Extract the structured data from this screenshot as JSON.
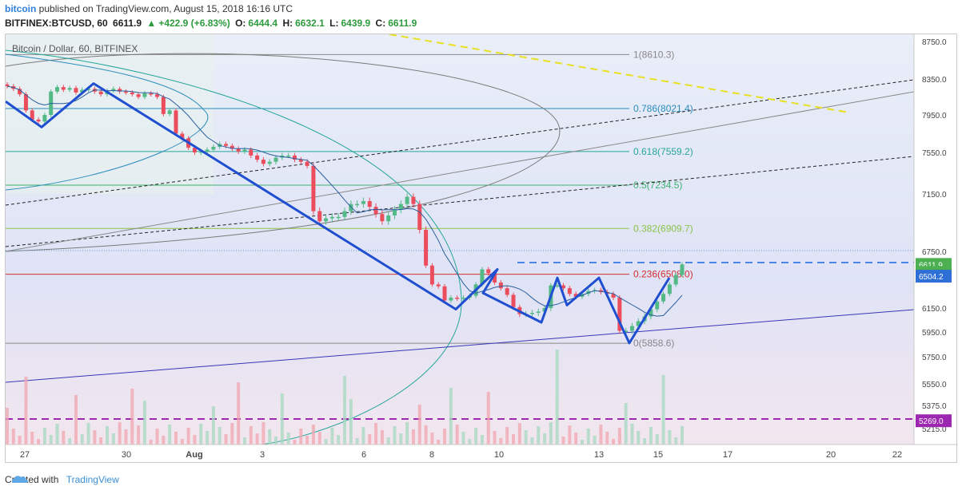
{
  "header": {
    "brand": "bitcoin",
    "published": "published on TradingView.com, August 15, 2018 16:16 UTC",
    "symbol": "BITFINEX:BTCUSD, 60",
    "last": "6611.9",
    "change": "+422.9 (+6.83%)",
    "o_label": "O:",
    "o_value": "6444.4",
    "h_label": "H:",
    "h_value": "6632.1",
    "l_label": "L:",
    "l_value": "6439.9",
    "c_label": "C:",
    "c_value": "6611.9"
  },
  "footer": {
    "created_with": "Created with",
    "brand": "TradingView"
  },
  "chart_data": {
    "type": "candlestick",
    "title": "Bitcoin / Dollar, 60, BITFINEX",
    "y_ticks": [
      "8750.0",
      "8350.0",
      "7950.0",
      "7550.0",
      "7150.0",
      "6750.0",
      "6150.0",
      "5950.0",
      "5750.0",
      "5550.0",
      "5375.0",
      "5215.0"
    ],
    "x_ticks": [
      "27",
      "30",
      "Aug",
      "3",
      "6",
      "8",
      "10",
      "13",
      "15",
      "17",
      "20",
      "22"
    ],
    "ylim": [
      5215,
      8750
    ],
    "fib_levels": [
      {
        "label": "1(8610.3)",
        "value": 8610.3,
        "color": "#888888"
      },
      {
        "label": "0.786(8021.4)",
        "value": 8021.4,
        "color": "#2b8cbe"
      },
      {
        "label": "0.618(7559.2)",
        "value": 7559.2,
        "color": "#26a69a"
      },
      {
        "label": "0.5(7234.5)",
        "value": 7234.5,
        "color": "#3cb371"
      },
      {
        "label": "0.382(6909.7)",
        "value": 6909.7,
        "color": "#8bc34a"
      },
      {
        "label": "0.236(6508.0)",
        "value": 6508.0,
        "color": "#d32f2f"
      },
      {
        "label": "0(5858.6)",
        "value": 5858.6,
        "color": "#888888"
      }
    ],
    "price_labels": [
      {
        "text": "6611.9",
        "value": 6611.9,
        "color": "#4caf50"
      },
      {
        "text": "43:56",
        "value": 6560,
        "color": "#4caf50"
      },
      {
        "text": "6504.2",
        "value": 6504.2,
        "color": "#2f6fd8"
      },
      {
        "text": "5269.0",
        "value": 5269.0,
        "color": "#9c27b0"
      }
    ],
    "candles": [
      8270,
      8240,
      8180,
      8000,
      7900,
      7880,
      7950,
      8210,
      8260,
      8230,
      8250,
      8200,
      8230,
      8240,
      8210,
      8180,
      8220,
      8240,
      8210,
      8200,
      8180,
      8150,
      8190,
      8180,
      8150,
      7960,
      8000,
      7750,
      7700,
      7600,
      7550,
      7560,
      7580,
      7610,
      7640,
      7620,
      7590,
      7560,
      7580,
      7520,
      7480,
      7440,
      7460,
      7500,
      7520,
      7520,
      7480,
      7460,
      7420,
      7030,
      6960,
      6980,
      6990,
      6990,
      7030,
      7080,
      7080,
      7100,
      7060,
      7010,
      6960,
      7000,
      7040,
      7080,
      7130,
      7080,
      6900,
      6600,
      6400,
      6380,
      6230,
      6260,
      6250,
      6260,
      6280,
      6400,
      6560,
      6520,
      6420,
      6360,
      6290,
      6160,
      6100,
      6100,
      6110,
      6120,
      6150,
      6390,
      6390,
      6360,
      6300,
      6270,
      6300,
      6330,
      6340,
      6320,
      6300,
      6260,
      5960,
      5960,
      6000,
      6040,
      6080,
      6140,
      6220,
      6300,
      6400,
      6500,
      6611.9
    ],
    "pattern_points": [
      [
        0,
        8100
      ],
      [
        1,
        7820
      ],
      [
        2,
        8300
      ],
      [
        3,
        6140
      ],
      [
        4,
        6560
      ],
      [
        5,
        6310
      ],
      [
        6,
        6030
      ],
      [
        7,
        6470
      ],
      [
        8,
        6180
      ],
      [
        9,
        6470
      ],
      [
        10,
        5860
      ],
      [
        11,
        6470
      ]
    ]
  }
}
